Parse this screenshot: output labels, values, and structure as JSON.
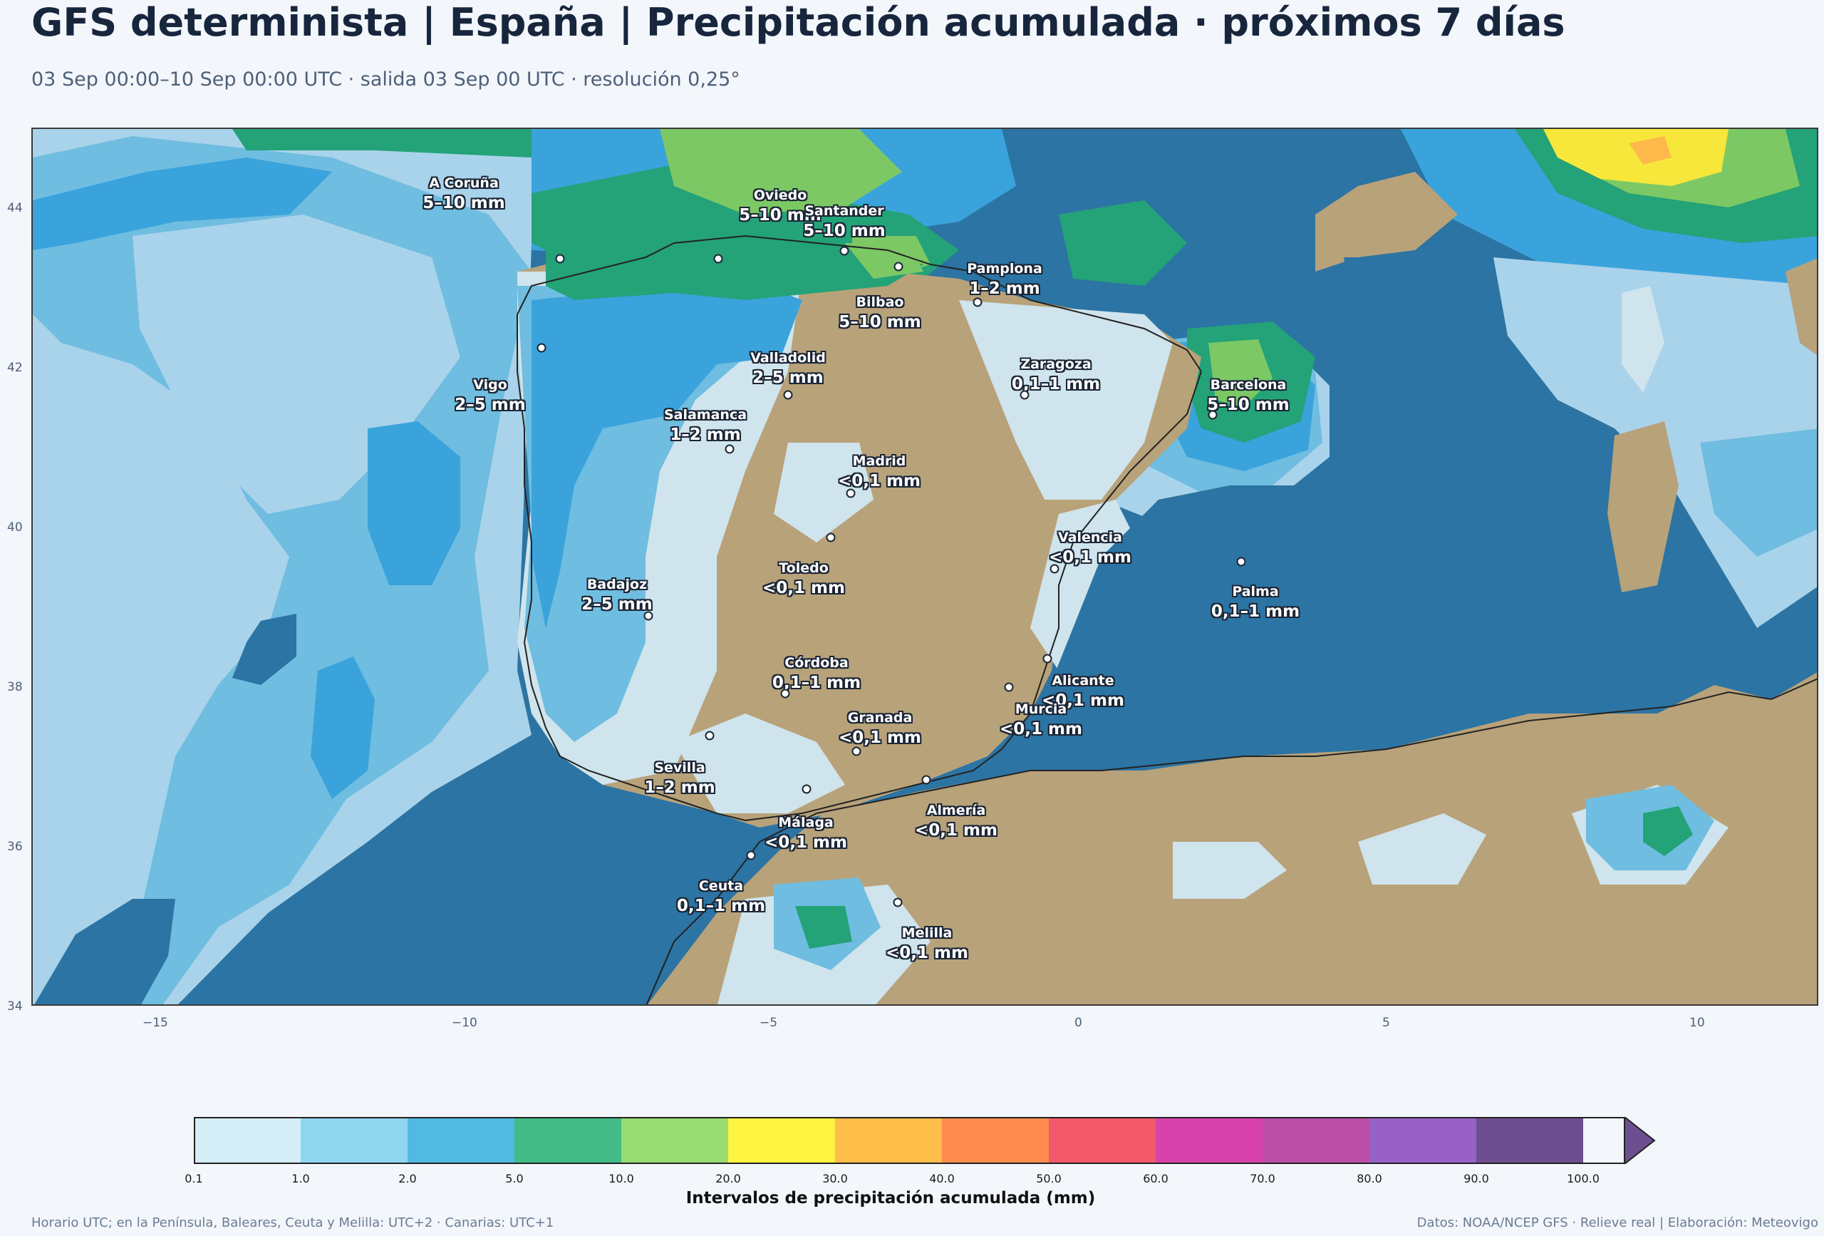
{
  "header": {
    "title": "GFS determinista | España | Precipitación acumulada · próximos 7 días",
    "subtitle": "03 Sep 00:00–10 Sep 00:00 UTC · salida 03 Sep 00 UTC · resolución 0,25°"
  },
  "map": {
    "x_ticks": [
      "−15",
      "−10",
      "−5",
      "0",
      "5",
      "10"
    ],
    "y_ticks": [
      "44",
      "42",
      "40",
      "38",
      "36",
      "34"
    ],
    "colors": {
      "sea": "#2c74a3",
      "land_dry": "#b8a27a",
      "very_light": "#cfe4ec",
      "light": "#a9d3ea",
      "medium": "#6fbde0",
      "blue": "#3aa3dc",
      "green": "#24a278",
      "light_green": "#7cc865",
      "yellow": "#f7e73a",
      "orange": "#ffb84a"
    },
    "cities": [
      {
        "name": "A Coruña",
        "value": "5–10 mm"
      },
      {
        "name": "Oviedo",
        "value": "5–10 mm"
      },
      {
        "name": "Santander",
        "value": "5–10 mm"
      },
      {
        "name": "Pamplona",
        "value": "1–2 mm"
      },
      {
        "name": "Bilbao",
        "value": "5–10 mm"
      },
      {
        "name": "Valladolid",
        "value": "2–5 mm"
      },
      {
        "name": "Zaragoza",
        "value": "0,1–1 mm"
      },
      {
        "name": "Barcelona",
        "value": "5–10 mm"
      },
      {
        "name": "Vigo",
        "value": "2–5 mm"
      },
      {
        "name": "Salamanca",
        "value": "1–2 mm"
      },
      {
        "name": "Madrid",
        "value": "<0,1 mm"
      },
      {
        "name": "Valencia",
        "value": "<0,1 mm"
      },
      {
        "name": "Toledo",
        "value": "<0,1 mm"
      },
      {
        "name": "Badajoz",
        "value": "2–5 mm"
      },
      {
        "name": "Palma",
        "value": "0,1–1 mm"
      },
      {
        "name": "Córdoba",
        "value": "0,1–1 mm"
      },
      {
        "name": "Alicante",
        "value": "<0,1 mm"
      },
      {
        "name": "Granada",
        "value": "<0,1 mm"
      },
      {
        "name": "Murcia",
        "value": "<0,1 mm"
      },
      {
        "name": "Sevilla",
        "value": "1–2 mm"
      },
      {
        "name": "Almería",
        "value": "<0,1 mm"
      },
      {
        "name": "Málaga",
        "value": "<0,1 mm"
      },
      {
        "name": "Ceuta",
        "value": "0,1–1 mm"
      },
      {
        "name": "Melilla",
        "value": "<0,1 mm"
      }
    ]
  },
  "colorbar": {
    "title": "Intervalos de precipitación acumulada (mm)",
    "ticks": [
      "0.1",
      "1.0",
      "2.0",
      "5.0",
      "10.0",
      "20.0",
      "30.0",
      "40.0",
      "50.0",
      "60.0",
      "70.0",
      "80.0",
      "90.0",
      "100.0"
    ],
    "colors": [
      "#d6eef7",
      "#8fd6ef",
      "#52b9e3",
      "#42bb88",
      "#99dc72",
      "#fff441",
      "#ffbd4a",
      "#ff8c4e",
      "#f2596a",
      "#d842ac",
      "#bb4fa8",
      "#9761c8",
      "#6d4f8f"
    ]
  },
  "footer": {
    "left": "Horario UTC; en la Península, Baleares, Ceuta y Melilla: UTC+2 · Canarias: UTC+1",
    "right": "Datos: NOAA/NCEP GFS · Relieve real | Elaboración: Meteovigo"
  }
}
